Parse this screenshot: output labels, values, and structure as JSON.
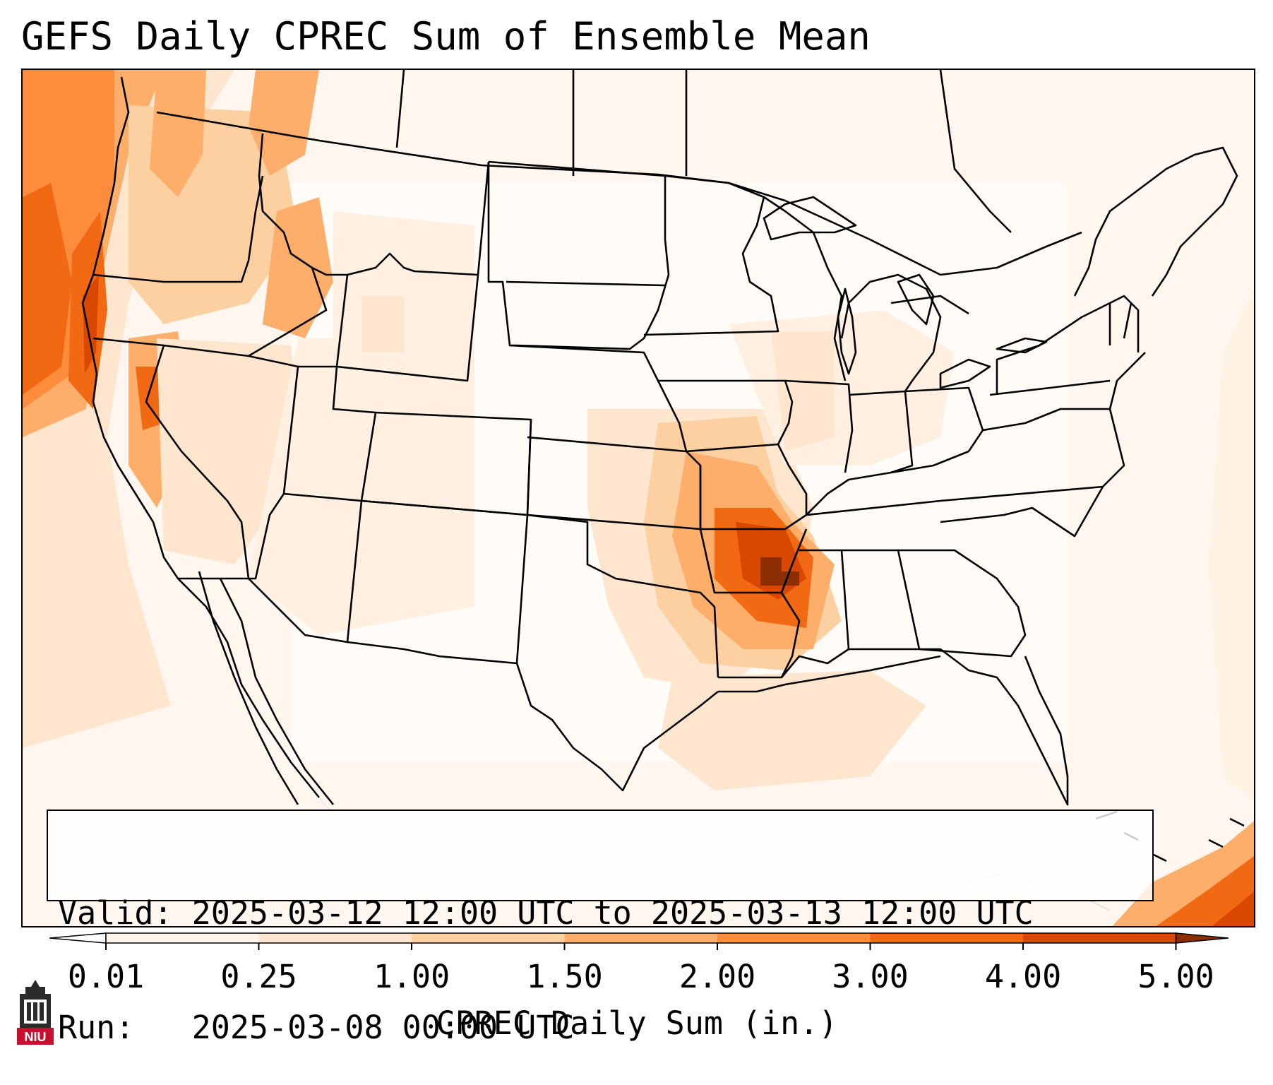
{
  "title": "GEFS Daily CPREC Sum of Ensemble Mean",
  "info": {
    "valid_label": "Valid:",
    "valid_value": "2025-03-12 12:00 UTC to 2025-03-13 12:00 UTC",
    "run_label": "Run:",
    "run_value": "2025-03-08 00:00 UTC"
  },
  "colorbar": {
    "label": "CPREC Daily Sum (in.)",
    "levels": [
      "0.01",
      "0.25",
      "1.00",
      "1.50",
      "2.00",
      "3.00",
      "4.00",
      "5.00"
    ],
    "colors": [
      "#fff5eb",
      "#fee6ce",
      "#fdd0a2",
      "#fdae6b",
      "#fd8d3c",
      "#f16913",
      "#d94801",
      "#8c2d04"
    ]
  },
  "logo": {
    "text": "NIU"
  }
}
